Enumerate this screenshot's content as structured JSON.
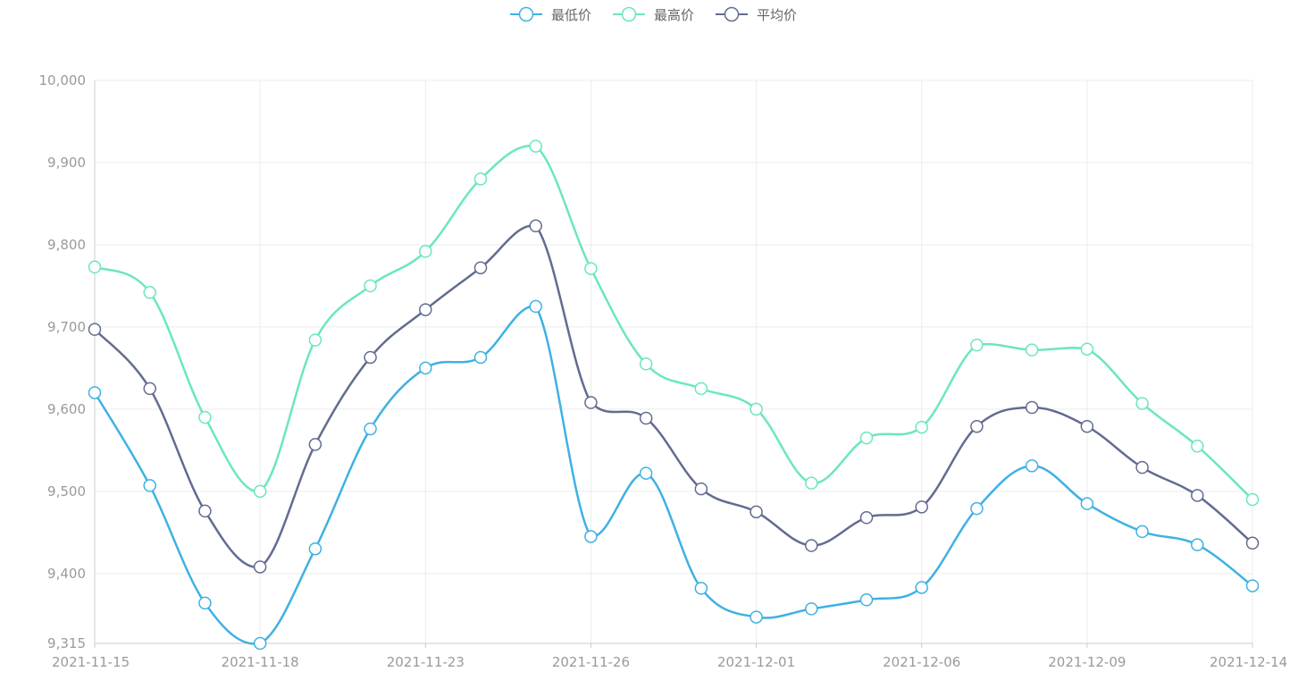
{
  "chart_data": {
    "type": "line",
    "smooth": true,
    "title": "",
    "xlabel": "",
    "ylabel": "",
    "ylim": [
      9315,
      10000
    ],
    "y_ticks": [
      "9,315",
      "9,400",
      "9,500",
      "9,600",
      "9,700",
      "9,800",
      "9,900",
      "10,000"
    ],
    "y_tick_values": [
      9315,
      9400,
      9500,
      9600,
      9700,
      9800,
      9900,
      10000
    ],
    "x_tick_labels": [
      "2021-11-15",
      "2021-11-18",
      "2021-11-23",
      "2021-11-26",
      "2021-12-01",
      "2021-12-06",
      "2021-12-09",
      "2021-12-14"
    ],
    "categories": [
      "2021-11-15",
      "2021-11-16",
      "2021-11-17",
      "2021-11-18",
      "2021-11-19",
      "2021-11-22",
      "2021-11-23",
      "2021-11-24",
      "2021-11-25",
      "2021-11-26",
      "2021-11-29",
      "2021-11-30",
      "2021-12-01",
      "2021-12-02",
      "2021-12-03",
      "2021-12-06",
      "2021-12-07",
      "2021-12-08",
      "2021-12-09",
      "2021-12-10",
      "2021-12-13",
      "2021-12-14"
    ],
    "grid": true,
    "legend_position": "top-center",
    "series": [
      {
        "name": "最低价",
        "color": "#3fb1e3",
        "values": [
          9620,
          9507,
          9364,
          9315,
          9430,
          9576,
          9650,
          9663,
          9725,
          9445,
          9522,
          9382,
          9347,
          9357,
          9368,
          9383,
          9479,
          9531,
          9485,
          9451,
          9435,
          9385
        ]
      },
      {
        "name": "最高价",
        "color": "#6be6c1",
        "values": [
          9773,
          9742,
          9590,
          9500,
          9684,
          9750,
          9792,
          9880,
          9920,
          9771,
          9655,
          9625,
          9600,
          9510,
          9565,
          9578,
          9678,
          9672,
          9673,
          9607,
          9555,
          9490
        ]
      },
      {
        "name": "平均价",
        "color": "#626c91",
        "values": [
          9697,
          9625,
          9476,
          9408,
          9557,
          9663,
          9721,
          9772,
          9823,
          9608,
          9589,
          9503,
          9475,
          9434,
          9468,
          9481,
          9579,
          9602,
          9579,
          9529,
          9495,
          9437
        ]
      }
    ]
  }
}
